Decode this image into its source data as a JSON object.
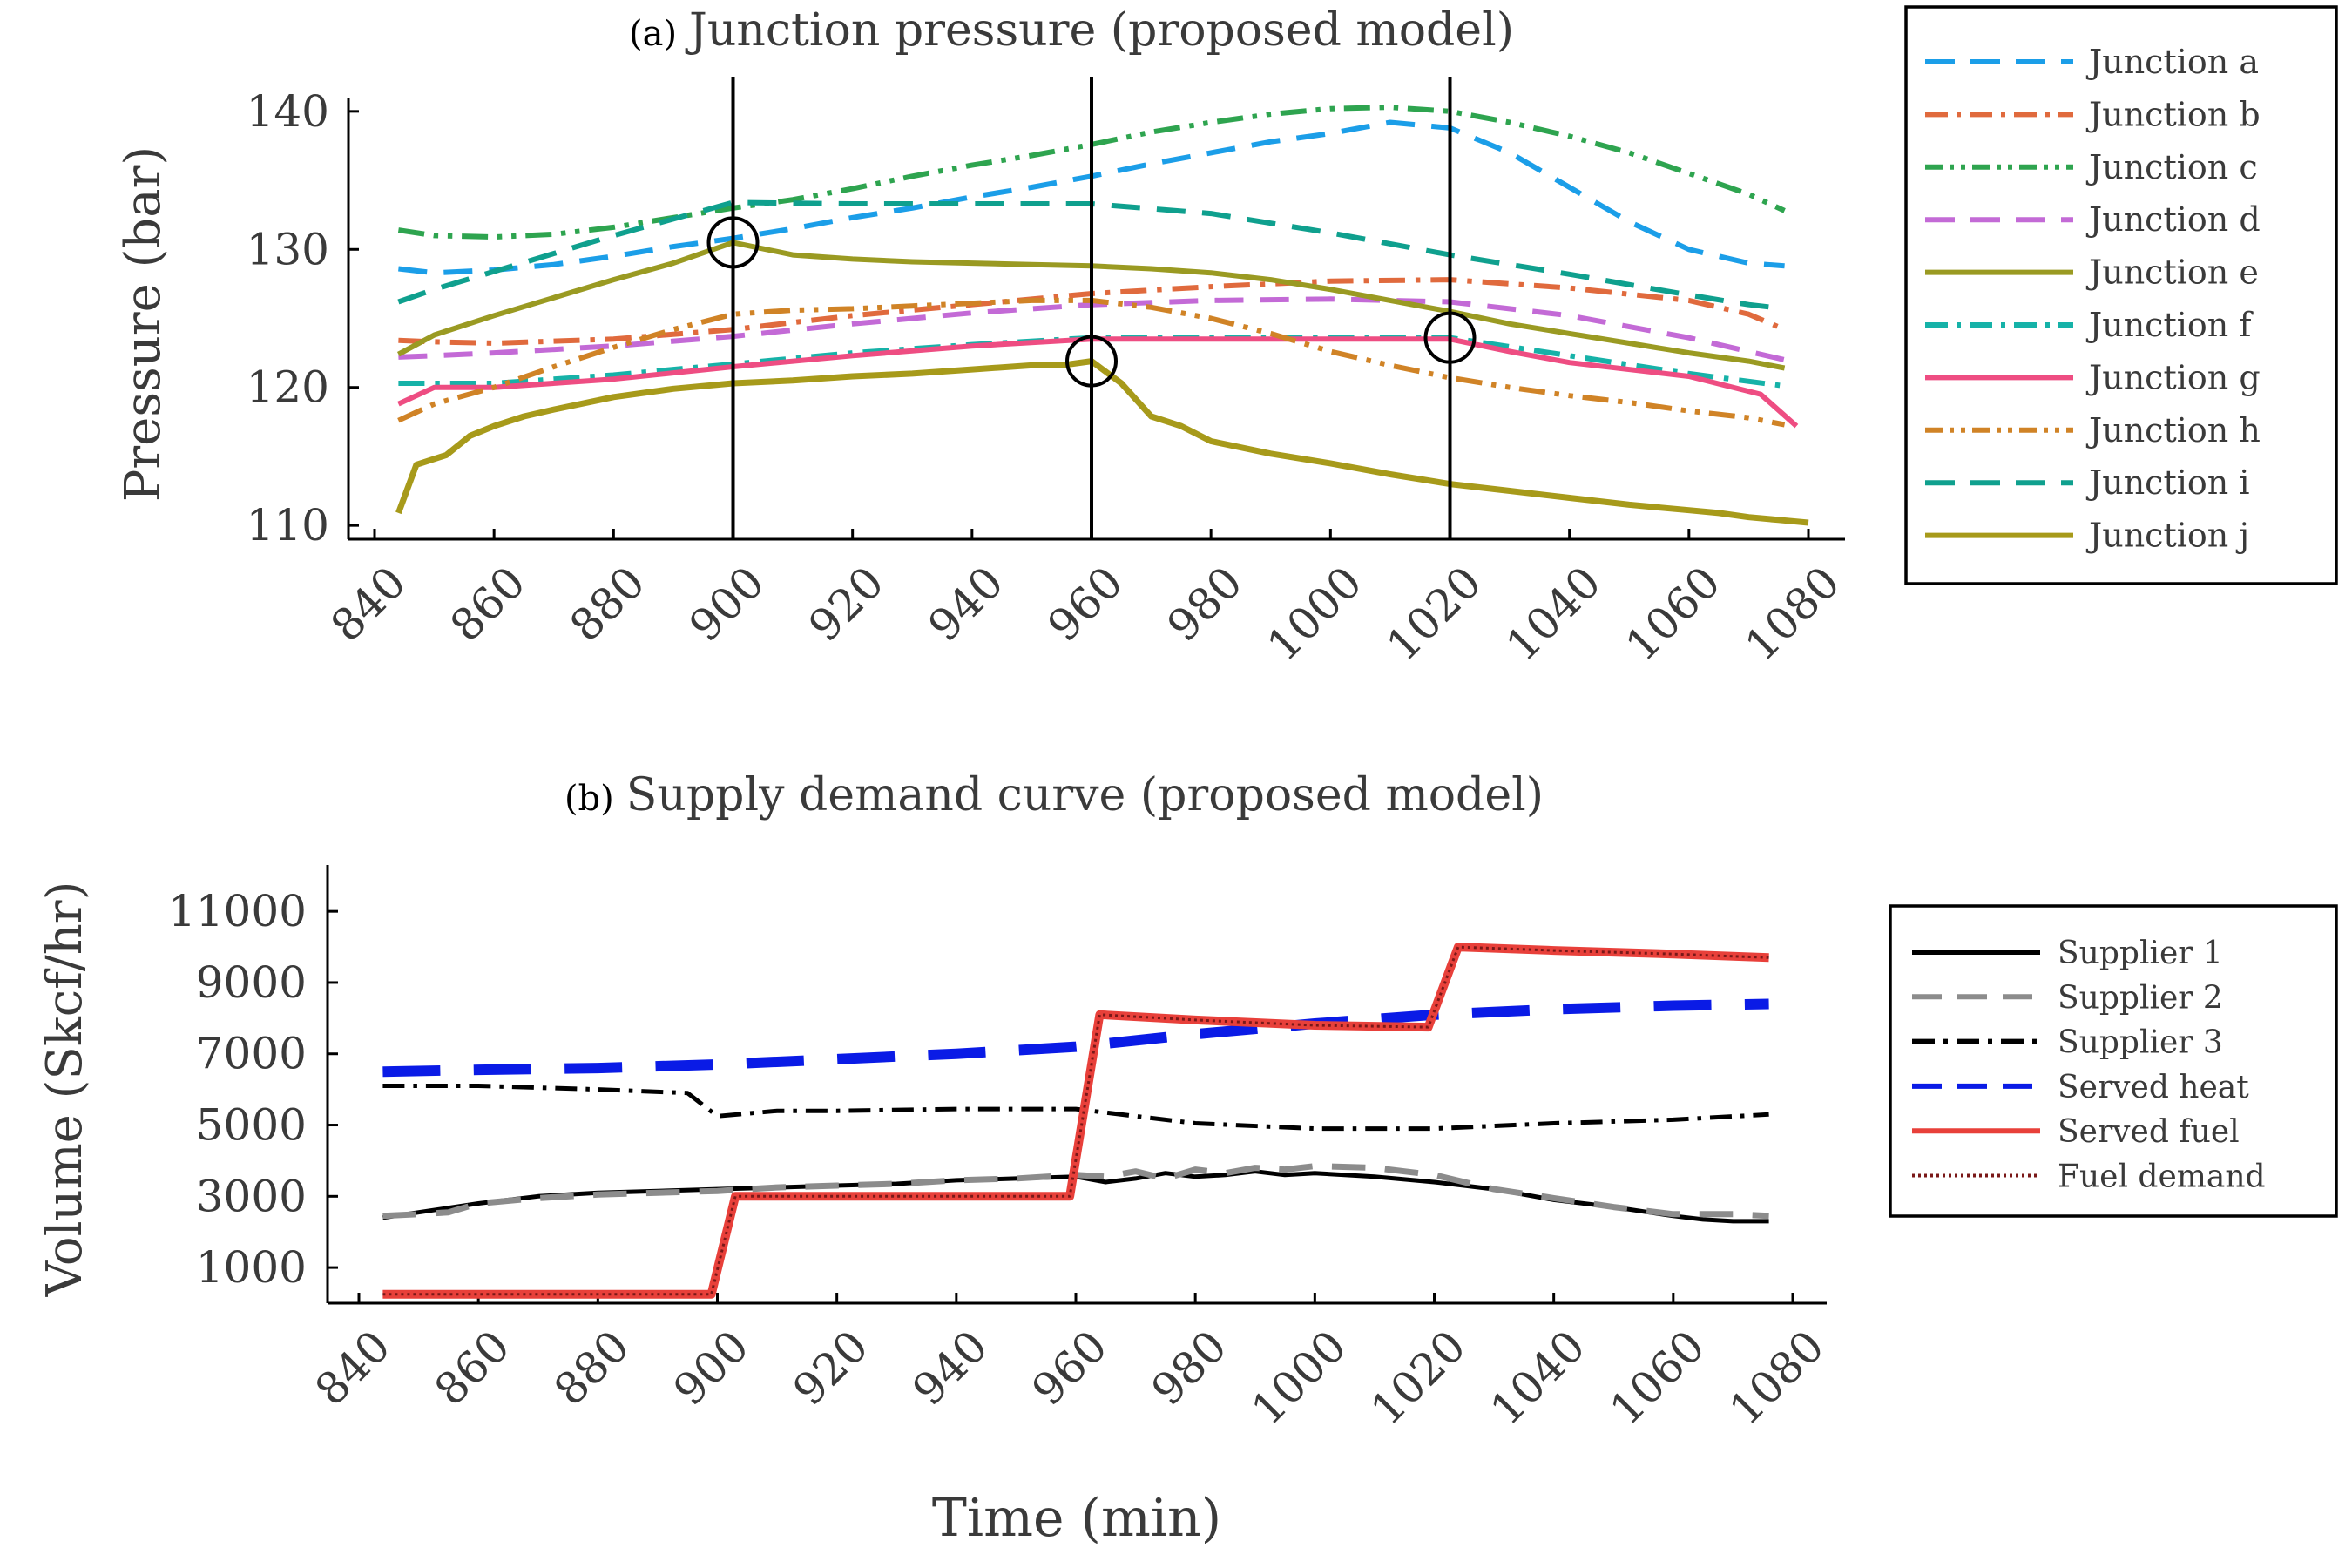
{
  "chart_data": [
    {
      "type": "line",
      "tag": "(a)",
      "title": "Junction pressure (proposed model)",
      "xlabel": "",
      "ylabel": "Pressure (bar)",
      "xlim": [
        840,
        1080
      ],
      "ylim": [
        109,
        141
      ],
      "xticks": [
        840,
        860,
        880,
        900,
        920,
        940,
        960,
        980,
        1000,
        1020,
        1040,
        1060,
        1080
      ],
      "yticks": [
        110,
        120,
        130,
        140
      ],
      "grid": false,
      "legend_position": "outside-right",
      "markers": {
        "vertical_lines_x": [
          900,
          960,
          1020
        ],
        "circles": [
          {
            "x": 900,
            "y": 130.5
          },
          {
            "x": 960,
            "y": 121.9
          },
          {
            "x": 1020,
            "y": 123.6
          }
        ]
      },
      "series": [
        {
          "name": "Junction a",
          "color": "#1b9ee8",
          "dash": "long",
          "width": 6,
          "x": [
            844,
            850,
            860,
            870,
            880,
            890,
            900,
            910,
            920,
            930,
            940,
            950,
            960,
            970,
            980,
            990,
            1000,
            1010,
            1020,
            1030,
            1040,
            1050,
            1060,
            1070,
            1076
          ],
          "y": [
            128.6,
            128.3,
            128.5,
            128.9,
            129.5,
            130.2,
            130.8,
            131.5,
            132.3,
            133.0,
            133.8,
            134.5,
            135.3,
            136.2,
            137.0,
            137.8,
            138.4,
            139.2,
            138.8,
            137.0,
            134.5,
            132.0,
            130.0,
            129.0,
            128.8
          ]
        },
        {
          "name": "Junction b",
          "color": "#e06a3d",
          "dash": "dashdot",
          "width": 6,
          "x": [
            844,
            850,
            860,
            880,
            900,
            920,
            940,
            960,
            980,
            1000,
            1020,
            1040,
            1060,
            1070,
            1076
          ],
          "y": [
            123.4,
            123.3,
            123.2,
            123.5,
            124.2,
            125.2,
            126.0,
            126.8,
            127.3,
            127.7,
            127.8,
            127.2,
            126.3,
            125.3,
            124.2
          ]
        },
        {
          "name": "Junction c",
          "color": "#2ea44f",
          "dash": "dashdotdot",
          "width": 6,
          "x": [
            844,
            850,
            860,
            870,
            880,
            890,
            900,
            910,
            920,
            930,
            940,
            950,
            960,
            970,
            980,
            990,
            1000,
            1010,
            1020,
            1030,
            1040,
            1050,
            1060,
            1070,
            1076
          ],
          "y": [
            131.4,
            131.0,
            130.9,
            131.1,
            131.6,
            132.3,
            133.0,
            133.6,
            134.4,
            135.3,
            136.1,
            136.8,
            137.6,
            138.5,
            139.2,
            139.8,
            140.2,
            140.3,
            140.0,
            139.2,
            138.2,
            137.0,
            135.5,
            134.0,
            132.8
          ]
        },
        {
          "name": "Junction d",
          "color": "#c36ad6",
          "dash": "long",
          "width": 6,
          "x": [
            844,
            850,
            860,
            880,
            900,
            920,
            940,
            960,
            980,
            1000,
            1020,
            1040,
            1060,
            1076
          ],
          "y": [
            122.2,
            122.3,
            122.5,
            123.0,
            123.7,
            124.6,
            125.4,
            126.0,
            126.3,
            126.4,
            126.2,
            125.2,
            123.6,
            122.0
          ]
        },
        {
          "name": "Junction e",
          "color": "#9a9a22",
          "dash": "solid",
          "width": 6,
          "x": [
            844,
            850,
            860,
            870,
            880,
            890,
            900,
            910,
            920,
            930,
            940,
            950,
            960,
            970,
            980,
            990,
            1000,
            1010,
            1020,
            1030,
            1040,
            1050,
            1060,
            1070,
            1076
          ],
          "y": [
            122.4,
            123.8,
            125.2,
            126.5,
            127.8,
            129.0,
            130.5,
            129.6,
            129.3,
            129.1,
            129.0,
            128.9,
            128.8,
            128.6,
            128.3,
            127.8,
            127.1,
            126.3,
            125.5,
            124.6,
            123.9,
            123.2,
            122.5,
            121.9,
            121.4
          ]
        },
        {
          "name": "Junction f",
          "color": "#16b2a8",
          "dash": "dashdot",
          "width": 6,
          "x": [
            844,
            860,
            880,
            900,
            920,
            940,
            960,
            980,
            1000,
            1020,
            1040,
            1060,
            1076
          ],
          "y": [
            120.3,
            120.3,
            120.9,
            121.7,
            122.5,
            123.1,
            123.6,
            123.6,
            123.6,
            123.6,
            122.3,
            121.0,
            120.1
          ]
        },
        {
          "name": "Junction g",
          "color": "#ee4d82",
          "dash": "solid",
          "width": 6,
          "x": [
            844,
            850,
            860,
            880,
            900,
            920,
            940,
            960,
            980,
            1000,
            1020,
            1030,
            1040,
            1060,
            1072,
            1078
          ],
          "y": [
            118.8,
            120.0,
            120.0,
            120.6,
            121.5,
            122.3,
            123.0,
            123.5,
            123.5,
            123.5,
            123.5,
            122.6,
            121.8,
            120.8,
            119.5,
            117.2
          ]
        },
        {
          "name": "Junction h",
          "color": "#d08326",
          "dash": "dashdotdot",
          "width": 6,
          "x": [
            844,
            850,
            860,
            870,
            880,
            890,
            900,
            910,
            920,
            930,
            940,
            950,
            960,
            970,
            980,
            990,
            1000,
            1010,
            1020,
            1030,
            1040,
            1050,
            1060,
            1070,
            1076
          ],
          "y": [
            117.6,
            118.8,
            120.0,
            121.5,
            122.9,
            124.2,
            125.3,
            125.6,
            125.7,
            125.9,
            126.1,
            126.3,
            126.3,
            125.8,
            125.0,
            123.9,
            122.6,
            121.6,
            120.7,
            120.0,
            119.4,
            118.9,
            118.3,
            117.8,
            117.3
          ]
        },
        {
          "name": "Junction i",
          "color": "#0fa08e",
          "dash": "long",
          "width": 6,
          "x": [
            844,
            850,
            860,
            870,
            880,
            890,
            900,
            920,
            940,
            960,
            980,
            1000,
            1020,
            1040,
            1060,
            1070,
            1076
          ],
          "y": [
            126.2,
            127.1,
            128.4,
            129.7,
            131.0,
            132.2,
            133.4,
            133.3,
            133.3,
            133.3,
            132.6,
            131.2,
            129.6,
            128.2,
            126.7,
            126.0,
            125.7
          ]
        },
        {
          "name": "Junction j",
          "color": "#a79a1a",
          "dash": "solid",
          "width": 7,
          "x": [
            844,
            847,
            852,
            856,
            860,
            865,
            870,
            880,
            890,
            900,
            910,
            920,
            930,
            940,
            950,
            955,
            960,
            965,
            970,
            975,
            980,
            990,
            1000,
            1010,
            1020,
            1030,
            1040,
            1050,
            1060,
            1065,
            1070,
            1075,
            1080
          ],
          "y": [
            110.9,
            114.4,
            115.1,
            116.5,
            117.2,
            117.9,
            118.4,
            119.3,
            119.9,
            120.3,
            120.5,
            120.8,
            121.0,
            121.3,
            121.6,
            121.6,
            121.9,
            120.3,
            117.9,
            117.2,
            116.1,
            115.2,
            114.5,
            113.7,
            113.0,
            112.5,
            112.0,
            111.5,
            111.1,
            110.9,
            110.6,
            110.4,
            110.2
          ]
        }
      ]
    },
    {
      "type": "line",
      "tag": "(b)",
      "title": "Supply demand curve (proposed model)",
      "xlabel": "Time (min)",
      "ylabel": "Volume (Skcf/hr)",
      "xlim": [
        840,
        1080
      ],
      "ylim": [
        0,
        12300
      ],
      "xticks": [
        840,
        860,
        880,
        900,
        920,
        940,
        960,
        980,
        1000,
        1020,
        1040,
        1060,
        1080
      ],
      "yticks": [
        1000,
        3000,
        5000,
        7000,
        9000,
        11000
      ],
      "grid": false,
      "legend_position": "outside-right",
      "series": [
        {
          "name": "Supplier 1",
          "color": "#000000",
          "dash": "solid",
          "width": 5,
          "x": [
            844,
            850,
            860,
            870,
            880,
            890,
            900,
            910,
            920,
            930,
            940,
            950,
            960,
            965,
            970,
            975,
            980,
            985,
            990,
            995,
            1000,
            1010,
            1020,
            1030,
            1040,
            1050,
            1060,
            1065,
            1070,
            1076
          ],
          "y": [
            2400,
            2550,
            2800,
            3000,
            3100,
            3150,
            3200,
            3250,
            3300,
            3350,
            3450,
            3500,
            3550,
            3400,
            3500,
            3650,
            3550,
            3600,
            3700,
            3600,
            3650,
            3550,
            3400,
            3200,
            2900,
            2700,
            2450,
            2350,
            2300,
            2300
          ]
        },
        {
          "name": "Supplier 2",
          "color": "#8c8c8c",
          "dash": "long",
          "width": 7,
          "x": [
            844,
            850,
            855,
            860,
            870,
            880,
            890,
            900,
            910,
            920,
            930,
            940,
            950,
            960,
            965,
            970,
            975,
            980,
            985,
            990,
            995,
            1000,
            1010,
            1020,
            1030,
            1040,
            1050,
            1060,
            1070,
            1076
          ],
          "y": [
            2450,
            2500,
            2550,
            2800,
            2950,
            3050,
            3100,
            3150,
            3250,
            3300,
            3350,
            3450,
            3500,
            3600,
            3550,
            3700,
            3500,
            3750,
            3650,
            3800,
            3750,
            3850,
            3800,
            3600,
            3200,
            2950,
            2700,
            2500,
            2500,
            2450
          ]
        },
        {
          "name": "Supplier 3",
          "color": "#000000",
          "dash": "dashdot",
          "width": 5,
          "x": [
            844,
            860,
            880,
            895,
            900,
            910,
            920,
            940,
            960,
            980,
            1000,
            1020,
            1040,
            1060,
            1076
          ],
          "y": [
            6100,
            6100,
            6000,
            5900,
            5250,
            5400,
            5400,
            5450,
            5450,
            5050,
            4900,
            4900,
            5050,
            5150,
            5300
          ]
        },
        {
          "name": "Served heat",
          "color": "#0a1be6",
          "dash": "long",
          "width": 12,
          "x": [
            844,
            860,
            880,
            900,
            920,
            940,
            960,
            980,
            1000,
            1020,
            1040,
            1060,
            1076
          ],
          "y": [
            6500,
            6550,
            6600,
            6700,
            6850,
            7000,
            7200,
            7550,
            7850,
            8100,
            8250,
            8350,
            8400
          ]
        },
        {
          "name": "Served fuel",
          "color": "#e8403a",
          "dash": "solid",
          "width": 10,
          "x": [
            844,
            860,
            880,
            899,
            903,
            920,
            940,
            959,
            964,
            980,
            1000,
            1019,
            1024,
            1040,
            1060,
            1076
          ],
          "y": [
            250,
            250,
            250,
            250,
            3000,
            3000,
            3000,
            3000,
            8100,
            7950,
            7800,
            7750,
            10000,
            9900,
            9800,
            9700
          ]
        },
        {
          "name": "Fuel demand",
          "color": "#7a1818",
          "dash": "dotted",
          "width": 3,
          "x": [
            844,
            860,
            880,
            899,
            903,
            920,
            940,
            959,
            964,
            980,
            1000,
            1019,
            1024,
            1040,
            1060,
            1076
          ],
          "y": [
            250,
            250,
            250,
            250,
            3000,
            3000,
            3000,
            3000,
            8100,
            7950,
            7800,
            7750,
            10000,
            9900,
            9800,
            9700
          ]
        }
      ]
    }
  ]
}
